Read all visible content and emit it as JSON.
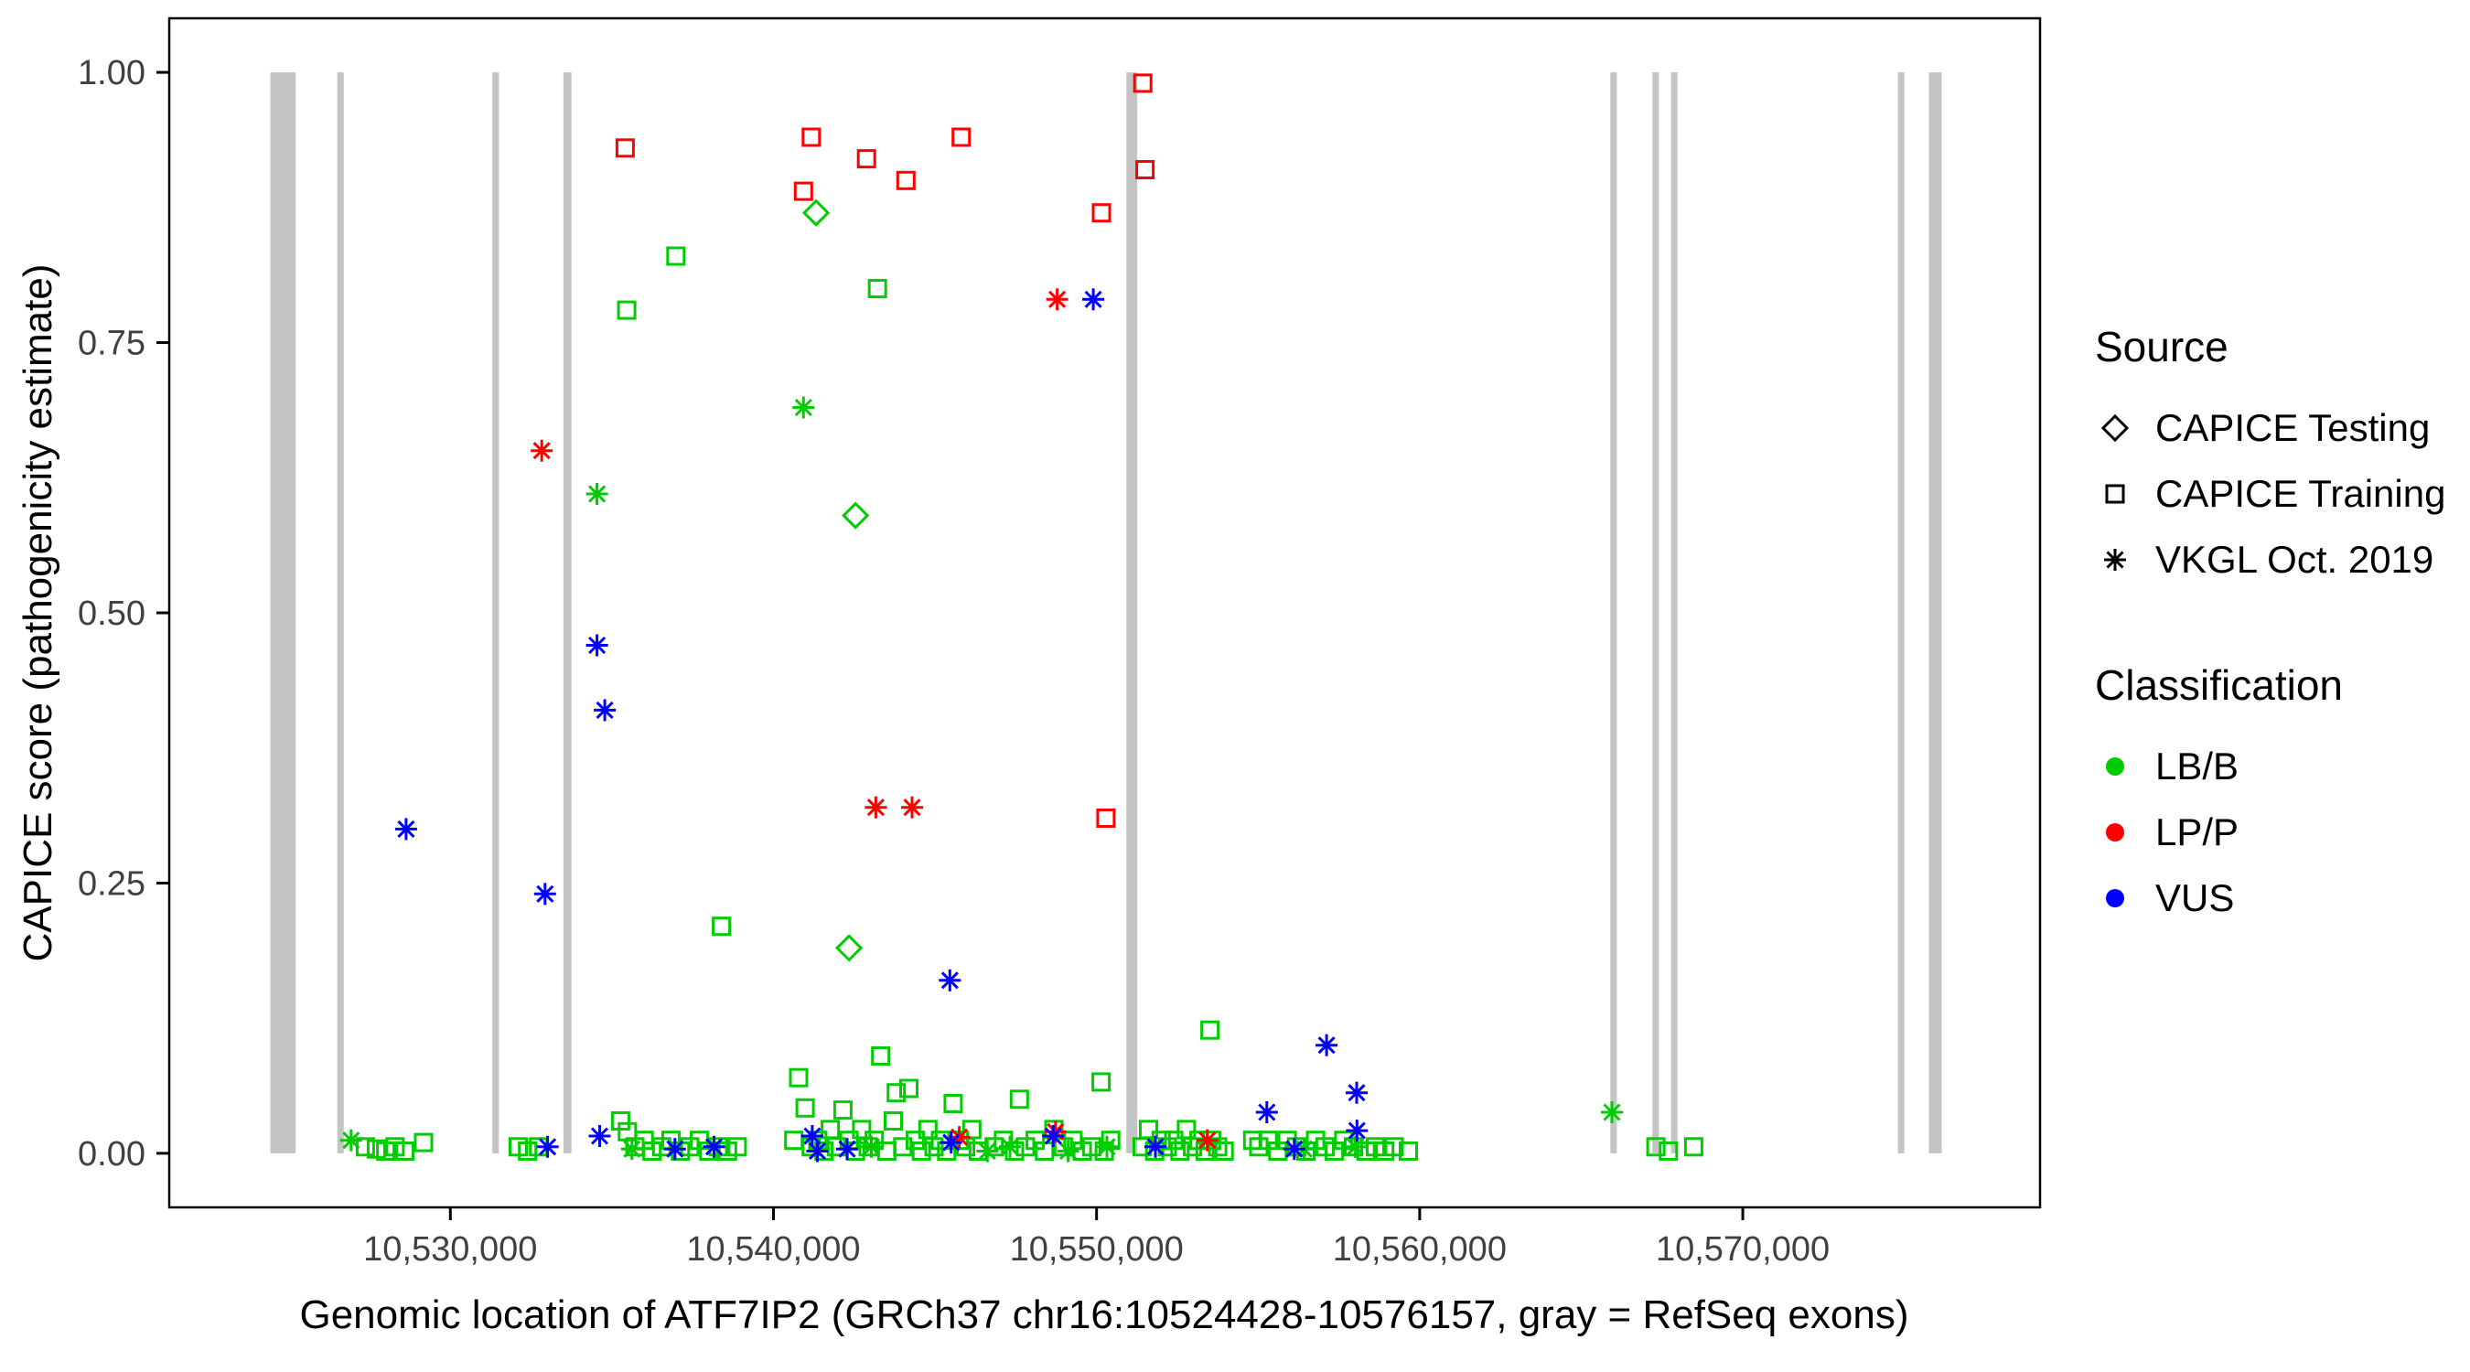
{
  "figure": {
    "background_color": "#FFFFFF",
    "exon_color": "#C4C4C4",
    "axis_color": "#000000",
    "tick_label_color": "#404040"
  },
  "legend": {
    "source": {
      "title": "Source",
      "items": [
        {
          "label": "CAPICE Testing",
          "shape": "diamond"
        },
        {
          "label": "CAPICE Training",
          "shape": "square"
        },
        {
          "label": "VKGL Oct. 2019",
          "shape": "asterisk"
        }
      ]
    },
    "classification": {
      "title": "Classification",
      "items": [
        {
          "label": "LB/B",
          "color": "#00CD00"
        },
        {
          "label": "LP/P",
          "color": "#FF0000"
        },
        {
          "label": "VUS",
          "color": "#0000FF"
        }
      ]
    }
  },
  "chart_data": {
    "type": "scatter",
    "title": "",
    "xlabel": "Genomic location of ATF7IP2 (GRCh37 chr16:10524428-10576157, gray = RefSeq exons)",
    "ylabel": "CAPICE score (pathogenicity estimate)",
    "xlim": [
      10521300,
      10579200
    ],
    "ylim": [
      -0.05,
      1.05
    ],
    "grid": false,
    "legend_position": "right",
    "x_ticks": [
      10530000,
      10540000,
      10550000,
      10560000,
      10570000
    ],
    "x_tick_labels": [
      "10,530,000",
      "10,540,000",
      "10,550,000",
      "10,560,000",
      "10,570,000"
    ],
    "y_ticks": [
      0,
      0.25,
      0.5,
      0.75,
      1
    ],
    "y_tick_labels": [
      "0.00",
      "0.25",
      "0.50",
      "0.75",
      "1.00"
    ],
    "refseq_exons": [
      [
        10524428,
        10525210
      ],
      [
        10526500,
        10526700
      ],
      [
        10531300,
        10531500
      ],
      [
        10533500,
        10533750
      ],
      [
        10550920,
        10551260
      ],
      [
        10565900,
        10566100
      ],
      [
        10567200,
        10567400
      ],
      [
        10567780,
        10567980
      ],
      [
        10574800,
        10575000
      ],
      [
        10575760,
        10576157
      ]
    ],
    "series": [
      {
        "name": "CAPICE Training / LB-B",
        "source": "CAPICE Training",
        "classification": "LB/B",
        "shape": "square",
        "color": "#00CD00",
        "points": [
          [
            10536980,
            0.83
          ],
          [
            10535460,
            0.78
          ],
          [
            10543220,
            0.8
          ],
          [
            10538390,
            0.21
          ],
          [
            10553510,
            0.114
          ],
          [
            10527370,
            0.006
          ],
          [
            10527710,
            0.004
          ],
          [
            10528000,
            0.002
          ],
          [
            10528290,
            0.006
          ],
          [
            10528590,
            0.002
          ],
          [
            10529170,
            0.01
          ],
          [
            10532100,
            0.006
          ],
          [
            10532390,
            0.002
          ],
          [
            10532730,
            0.006
          ],
          [
            10535270,
            0.03
          ],
          [
            10535480,
            0.02
          ],
          [
            10535710,
            0.006
          ],
          [
            10536000,
            0.012
          ],
          [
            10536240,
            0.002
          ],
          [
            10536540,
            0.006
          ],
          [
            10536830,
            0.012
          ],
          [
            10537120,
            0.002
          ],
          [
            10537410,
            0.006
          ],
          [
            10537710,
            0.012
          ],
          [
            10538000,
            0.002
          ],
          [
            10538290,
            0.006
          ],
          [
            10538580,
            0.002
          ],
          [
            10538880,
            0.006
          ],
          [
            10540630,
            0.012
          ],
          [
            10540780,
            0.07
          ],
          [
            10540980,
            0.042
          ],
          [
            10541170,
            0.006
          ],
          [
            10541370,
            0.012
          ],
          [
            10541560,
            0.002
          ],
          [
            10541760,
            0.022
          ],
          [
            10541950,
            0.006
          ],
          [
            10542150,
            0.04
          ],
          [
            10542340,
            0.012
          ],
          [
            10542540,
            0.002
          ],
          [
            10542730,
            0.022
          ],
          [
            10542930,
            0.006
          ],
          [
            10543120,
            0.012
          ],
          [
            10543320,
            0.09
          ],
          [
            10543510,
            0.002
          ],
          [
            10543710,
            0.03
          ],
          [
            10543800,
            0.056
          ],
          [
            10544000,
            0.006
          ],
          [
            10544190,
            0.06
          ],
          [
            10544390,
            0.012
          ],
          [
            10544580,
            0.002
          ],
          [
            10544780,
            0.022
          ],
          [
            10544970,
            0.006
          ],
          [
            10545170,
            0.012
          ],
          [
            10545360,
            0.002
          ],
          [
            10545560,
            0.046
          ],
          [
            10545750,
            0.012
          ],
          [
            10545950,
            0.006
          ],
          [
            10546140,
            0.022
          ],
          [
            10546340,
            0.002
          ],
          [
            10546830,
            0.006
          ],
          [
            10547120,
            0.012
          ],
          [
            10547460,
            0.002
          ],
          [
            10547610,
            0.05
          ],
          [
            10547800,
            0.006
          ],
          [
            10548100,
            0.012
          ],
          [
            10548390,
            0.002
          ],
          [
            10548680,
            0.022
          ],
          [
            10548970,
            0.006
          ],
          [
            10549270,
            0.012
          ],
          [
            10549560,
            0.002
          ],
          [
            10549850,
            0.006
          ],
          [
            10550140,
            0.066
          ],
          [
            10550240,
            0.002
          ],
          [
            10550440,
            0.012
          ],
          [
            10551410,
            0.006
          ],
          [
            10551610,
            0.022
          ],
          [
            10551800,
            0.002
          ],
          [
            10552000,
            0.012
          ],
          [
            10552190,
            0.006
          ],
          [
            10552390,
            0.012
          ],
          [
            10552580,
            0.002
          ],
          [
            10552780,
            0.022
          ],
          [
            10552970,
            0.006
          ],
          [
            10553170,
            0.012
          ],
          [
            10553360,
            0.002
          ],
          [
            10553560,
            0.012
          ],
          [
            10553750,
            0.006
          ],
          [
            10553950,
            0.002
          ],
          [
            10554830,
            0.012
          ],
          [
            10555020,
            0.006
          ],
          [
            10555310,
            0.012
          ],
          [
            10555610,
            0.002
          ],
          [
            10555900,
            0.012
          ],
          [
            10556190,
            0.006
          ],
          [
            10556480,
            0.002
          ],
          [
            10556780,
            0.012
          ],
          [
            10557070,
            0.006
          ],
          [
            10557360,
            0.002
          ],
          [
            10557650,
            0.012
          ],
          [
            10557950,
            0.006
          ],
          [
            10558340,
            0.002
          ],
          [
            10558630,
            0.006
          ],
          [
            10558920,
            0.002
          ],
          [
            10559210,
            0.006
          ],
          [
            10559650,
            0.002
          ],
          [
            10567310,
            0.006
          ],
          [
            10567700,
            0.002
          ],
          [
            10568480,
            0.006
          ]
        ]
      },
      {
        "name": "CAPICE Testing / LB-B",
        "source": "CAPICE Testing",
        "classification": "LB/B",
        "shape": "diamond",
        "color": "#00CD00",
        "points": [
          [
            10541320,
            0.87
          ],
          [
            10542540,
            0.59
          ],
          [
            10542340,
            0.19
          ]
        ]
      },
      {
        "name": "VKGL Oct. 2019 / LB-B",
        "source": "VKGL Oct. 2019",
        "classification": "LB/B",
        "shape": "asterisk",
        "color": "#00CD00",
        "points": [
          [
            10540930,
            0.69
          ],
          [
            10534540,
            0.61
          ],
          [
            10565950,
            0.038
          ],
          [
            10526930,
            0.012
          ],
          [
            10535620,
            0.004
          ],
          [
            10543030,
            0.006
          ],
          [
            10546620,
            0.002
          ],
          [
            10547320,
            0.006
          ],
          [
            10549120,
            0.002
          ],
          [
            10550320,
            0.006
          ],
          [
            10556420,
            0.004
          ],
          [
            10558010,
            0.006
          ]
        ]
      },
      {
        "name": "CAPICE Training / LP-P",
        "source": "CAPICE Training",
        "classification": "LP/P",
        "shape": "square",
        "color": "#FF0000",
        "points": [
          [
            10535410,
            0.93
          ],
          [
            10540930,
            0.89
          ],
          [
            10541170,
            0.94
          ],
          [
            10542880,
            0.92
          ],
          [
            10544100,
            0.9
          ],
          [
            10545810,
            0.94
          ],
          [
            10550150,
            0.87
          ],
          [
            10551430,
            0.99
          ],
          [
            10551500,
            0.91
          ],
          [
            10550290,
            0.31
          ]
        ]
      },
      {
        "name": "VKGL Oct. 2019 / LP-P",
        "source": "VKGL Oct. 2019",
        "classification": "LP/P",
        "shape": "asterisk",
        "color": "#FF0000",
        "points": [
          [
            10532830,
            0.65
          ],
          [
            10548780,
            0.79
          ],
          [
            10543170,
            0.32
          ],
          [
            10544290,
            0.32
          ],
          [
            10545750,
            0.015
          ],
          [
            10548730,
            0.02
          ],
          [
            10553430,
            0.012
          ]
        ]
      },
      {
        "name": "VKGL Oct. 2019 / VUS",
        "source": "VKGL Oct. 2019",
        "classification": "VUS",
        "shape": "asterisk",
        "color": "#0000FF",
        "points": [
          [
            10528630,
            0.3
          ],
          [
            10532930,
            0.24
          ],
          [
            10534540,
            0.47
          ],
          [
            10534780,
            0.41
          ],
          [
            10549900,
            0.79
          ],
          [
            10545460,
            0.16
          ],
          [
            10557120,
            0.1
          ],
          [
            10558050,
            0.056
          ],
          [
            10555270,
            0.038
          ],
          [
            10558060,
            0.021
          ],
          [
            10533010,
            0.006
          ],
          [
            10534620,
            0.016
          ],
          [
            10536950,
            0.004
          ],
          [
            10538160,
            0.006
          ],
          [
            10541200,
            0.016
          ],
          [
            10541360,
            0.002
          ],
          [
            10542280,
            0.004
          ],
          [
            10545500,
            0.01
          ],
          [
            10548660,
            0.016
          ],
          [
            10551820,
            0.006
          ],
          [
            10556120,
            0.004
          ]
        ]
      }
    ]
  }
}
